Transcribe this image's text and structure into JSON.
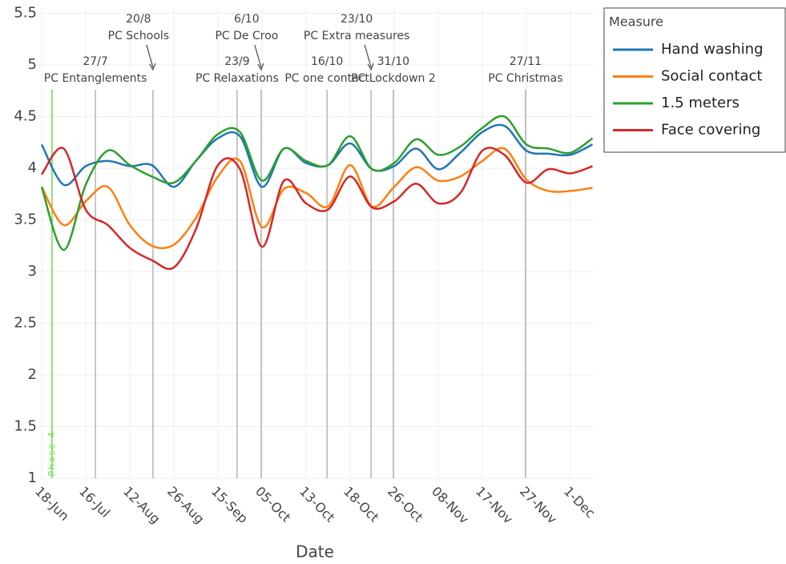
{
  "chart_data": {
    "type": "line",
    "x_label": "Date",
    "categories": [
      "18-Jun",
      null,
      "16-Jul",
      null,
      "12-Aug",
      null,
      "26-Aug",
      null,
      "15-Sep",
      null,
      "05-Oct",
      null,
      "13-Oct",
      null,
      "18-Oct",
      null,
      "26-Oct",
      null,
      "08-Nov",
      null,
      "17-Nov",
      null,
      "27-Nov",
      null,
      "1-Dec",
      null
    ],
    "series": [
      {
        "name": "Hand washing",
        "color": "#1f77b4",
        "values": [
          4.23,
          3.84,
          4.02,
          4.07,
          4.02,
          4.03,
          3.82,
          4.07,
          4.29,
          4.31,
          3.82,
          4.19,
          4.05,
          4.03,
          4.24,
          3.99,
          4.02,
          4.19,
          3.99,
          4.15,
          4.35,
          4.41,
          4.17,
          4.14,
          4.13,
          4.23
        ]
      },
      {
        "name": "Social contact",
        "color": "#ff7f0e",
        "values": [
          3.82,
          3.45,
          3.68,
          3.82,
          3.45,
          3.25,
          3.26,
          3.52,
          3.92,
          4.07,
          3.43,
          3.8,
          3.76,
          3.63,
          4.03,
          3.63,
          3.82,
          4.01,
          3.88,
          3.92,
          4.07,
          4.19,
          3.89,
          3.78,
          3.78,
          3.81
        ]
      },
      {
        "name": "1.5 meters",
        "color": "#2ca02c",
        "values": [
          3.82,
          3.21,
          3.84,
          4.17,
          4.03,
          3.92,
          3.86,
          4.07,
          4.33,
          4.35,
          3.88,
          4.19,
          4.07,
          4.03,
          4.31,
          3.99,
          4.05,
          4.28,
          4.13,
          4.21,
          4.39,
          4.5,
          4.23,
          4.19,
          4.15,
          4.29
        ]
      },
      {
        "name": "Face covering",
        "color": "#d62728",
        "values": [
          3.94,
          4.19,
          3.6,
          3.45,
          3.23,
          3.11,
          3.04,
          3.41,
          4.03,
          3.99,
          3.24,
          3.88,
          3.66,
          3.6,
          3.92,
          3.62,
          3.68,
          3.85,
          3.66,
          3.76,
          4.17,
          4.13,
          3.86,
          3.99,
          3.95,
          4.02
        ]
      }
    ],
    "ylim": [
      1,
      5.55
    ],
    "yticks": [
      1,
      1.5,
      2,
      2.5,
      3,
      3.5,
      4,
      4.5,
      5,
      5.5
    ],
    "grid": true,
    "legend_title": "Measure",
    "legend_position": "right",
    "annotations": [
      {
        "x": 0.47,
        "text": "Phase 4",
        "color": "#66dd44"
      },
      {
        "x": 2.44,
        "date": "27/7",
        "text": "PC Entanglements"
      },
      {
        "x": 5.05,
        "date": "20/8",
        "text": "PC Schools",
        "arrow": true
      },
      {
        "x": 8.87,
        "date": "23/9",
        "text": "PC Relaxations"
      },
      {
        "x": 9.96,
        "date": "6/10",
        "text": "PC De Croo",
        "arrow": true
      },
      {
        "x": 12.95,
        "date": "16/10",
        "text": "PC one contact"
      },
      {
        "x": 14.95,
        "date": "23/10",
        "text": "PC Extra measures",
        "arrow": true
      },
      {
        "x": 15.96,
        "date": "31/10",
        "text": "PC Lockdown 2"
      },
      {
        "x": 21.96,
        "date": "27/11",
        "text": "PC Christmas"
      }
    ]
  }
}
